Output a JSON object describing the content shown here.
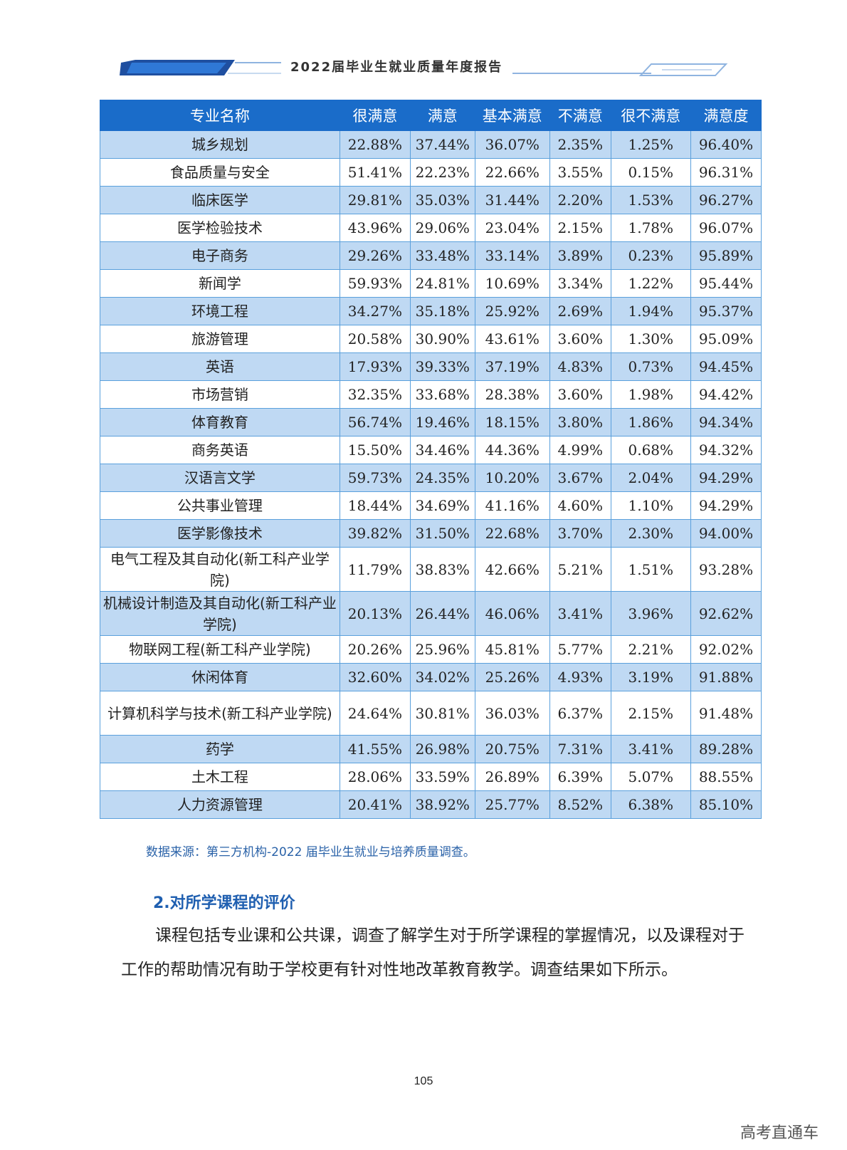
{
  "header": {
    "title": "2022届毕业生就业质量年度报告"
  },
  "table": {
    "columns": [
      "专业名称",
      "很满意",
      "满意",
      "基本满意",
      "不满意",
      "很不满意",
      "满意度"
    ],
    "rows": [
      [
        "城乡规划",
        "22.88%",
        "37.44%",
        "36.07%",
        "2.35%",
        "1.25%",
        "96.40%"
      ],
      [
        "食品质量与安全",
        "51.41%",
        "22.23%",
        "22.66%",
        "3.55%",
        "0.15%",
        "96.31%"
      ],
      [
        "临床医学",
        "29.81%",
        "35.03%",
        "31.44%",
        "2.20%",
        "1.53%",
        "96.27%"
      ],
      [
        "医学检验技术",
        "43.96%",
        "29.06%",
        "23.04%",
        "2.15%",
        "1.78%",
        "96.07%"
      ],
      [
        "电子商务",
        "29.26%",
        "33.48%",
        "33.14%",
        "3.89%",
        "0.23%",
        "95.89%"
      ],
      [
        "新闻学",
        "59.93%",
        "24.81%",
        "10.69%",
        "3.34%",
        "1.22%",
        "95.44%"
      ],
      [
        "环境工程",
        "34.27%",
        "35.18%",
        "25.92%",
        "2.69%",
        "1.94%",
        "95.37%"
      ],
      [
        "旅游管理",
        "20.58%",
        "30.90%",
        "43.61%",
        "3.60%",
        "1.30%",
        "95.09%"
      ],
      [
        "英语",
        "17.93%",
        "39.33%",
        "37.19%",
        "4.83%",
        "0.73%",
        "94.45%"
      ],
      [
        "市场营销",
        "32.35%",
        "33.68%",
        "28.38%",
        "3.60%",
        "1.98%",
        "94.42%"
      ],
      [
        "体育教育",
        "56.74%",
        "19.46%",
        "18.15%",
        "3.80%",
        "1.86%",
        "94.34%"
      ],
      [
        "商务英语",
        "15.50%",
        "34.46%",
        "44.36%",
        "4.99%",
        "0.68%",
        "94.32%"
      ],
      [
        "汉语言文学",
        "59.73%",
        "24.35%",
        "10.20%",
        "3.67%",
        "2.04%",
        "94.29%"
      ],
      [
        "公共事业管理",
        "18.44%",
        "34.69%",
        "41.16%",
        "4.60%",
        "1.10%",
        "94.29%"
      ],
      [
        "医学影像技术",
        "39.82%",
        "31.50%",
        "22.68%",
        "3.70%",
        "2.30%",
        "94.00%"
      ],
      [
        "电气工程及其自动化(新工科产业学院)",
        "11.79%",
        "38.83%",
        "42.66%",
        "5.21%",
        "1.51%",
        "93.28%"
      ],
      [
        "机械设计制造及其自动化(新工科产业学院)",
        "20.13%",
        "26.44%",
        "46.06%",
        "3.41%",
        "3.96%",
        "92.62%"
      ],
      [
        "物联网工程(新工科产业学院)",
        "20.26%",
        "25.96%",
        "45.81%",
        "5.77%",
        "2.21%",
        "92.02%"
      ],
      [
        "休闲体育",
        "32.60%",
        "34.02%",
        "25.26%",
        "4.93%",
        "3.19%",
        "91.88%"
      ],
      [
        "计算机科学与技术(新工科产业学院)",
        "24.64%",
        "30.81%",
        "36.03%",
        "6.37%",
        "2.15%",
        "91.48%"
      ],
      [
        "药学",
        "41.55%",
        "26.98%",
        "20.75%",
        "7.31%",
        "3.41%",
        "89.28%"
      ],
      [
        "土木工程",
        "28.06%",
        "33.59%",
        "26.89%",
        "6.39%",
        "5.07%",
        "88.55%"
      ],
      [
        "人力资源管理",
        "20.41%",
        "38.92%",
        "25.77%",
        "8.52%",
        "6.38%",
        "85.10%"
      ]
    ]
  },
  "source_note": "数据来源：第三方机构-2022 届毕业生就业与培养质量调查。",
  "section_heading": "2.对所学课程的评价",
  "paragraph": "课程包括专业课和公共课，调查了解学生对于所学课程的掌握情况，以及课程对于工作的帮助情况有助于学校更有针对性地改革教育教学。调查结果如下所示。",
  "page_number": "105",
  "watermark": "高考直通车",
  "colors": {
    "header_blue": "#1a6cc9",
    "row_blue": "#bfd9f3",
    "border": "#5aa0dc",
    "heading": "#1f5fb0"
  }
}
